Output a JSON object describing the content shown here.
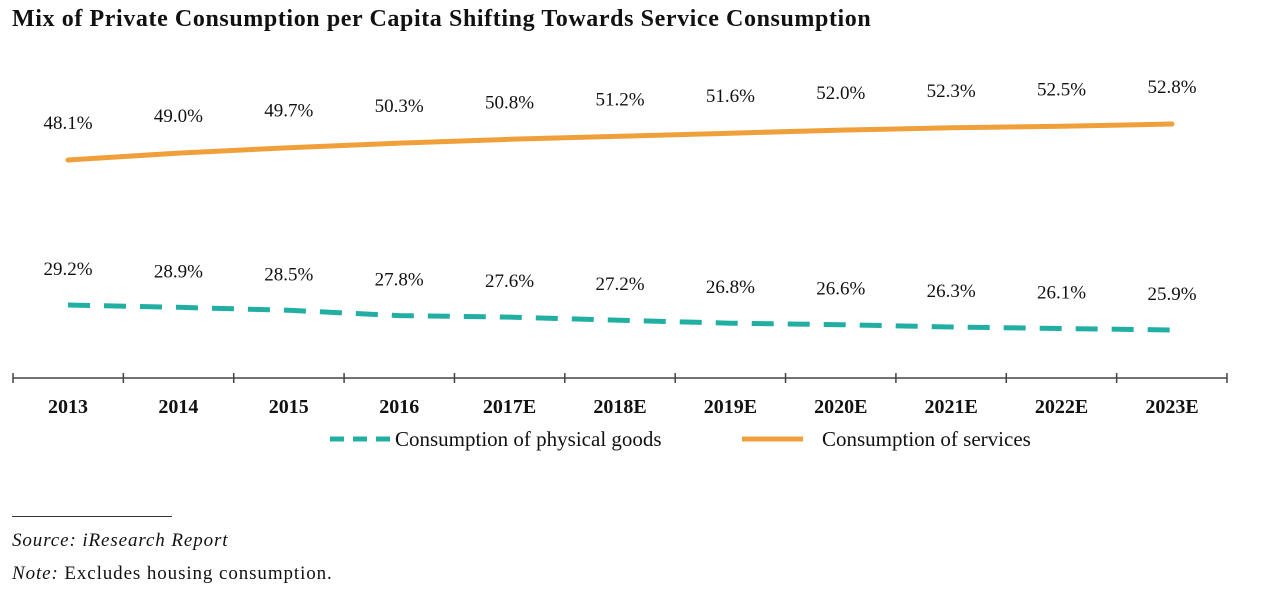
{
  "title": "Mix of Private Consumption per Capita Shifting Towards Service Consumption",
  "footer": {
    "source": "Source: iResearch Report",
    "note_label": "Note:",
    "note_text": " Excludes housing consumption."
  },
  "colors": {
    "services": "#F0A03A",
    "goods": "#22AFA3",
    "axis": "#444444"
  },
  "chart_data": {
    "type": "line",
    "categories": [
      "2013",
      "2014",
      "2015",
      "2016",
      "2017E",
      "2018E",
      "2019E",
      "2020E",
      "2021E",
      "2022E",
      "2023E"
    ],
    "series": [
      {
        "name": "Consumption of services",
        "style": "solid",
        "values": [
          48.1,
          49.0,
          49.7,
          50.3,
          50.8,
          51.2,
          51.6,
          52.0,
          52.3,
          52.5,
          52.8
        ],
        "labels": [
          "48.1%",
          "49.0%",
          "49.7%",
          "50.3%",
          "50.8%",
          "51.2%",
          "51.6%",
          "52.0%",
          "52.3%",
          "52.5%",
          "52.8%"
        ]
      },
      {
        "name": "Consumption of physical goods",
        "style": "dashed",
        "values": [
          29.2,
          28.9,
          28.5,
          27.8,
          27.6,
          27.2,
          26.8,
          26.6,
          26.3,
          26.1,
          25.9
        ],
        "labels": [
          "29.2%",
          "28.9%",
          "28.5%",
          "27.8%",
          "27.6%",
          "27.2%",
          "26.8%",
          "26.6%",
          "26.3%",
          "26.1%",
          "25.9%"
        ]
      }
    ],
    "legend": [
      "Consumption of physical goods",
      "Consumption of services"
    ],
    "legend_position": "bottom",
    "grid": false
  }
}
